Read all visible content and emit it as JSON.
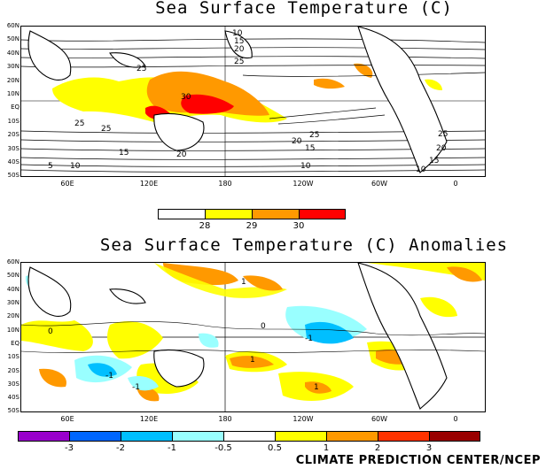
{
  "top_map": {
    "title": "Sea Surface Temperature (C)",
    "lat_labels": [
      "60N",
      "50N",
      "40N",
      "30N",
      "20N",
      "10N",
      "EQ",
      "10S",
      "20S",
      "30S",
      "40S",
      "50S"
    ],
    "lon_labels": [
      "60E",
      "120E",
      "180",
      "120W",
      "60W",
      "0"
    ],
    "contour_labels": [
      "10",
      "15",
      "20",
      "25",
      "30",
      "25",
      "25",
      "25",
      "20",
      "15",
      "10",
      "5",
      "10",
      "15",
      "20",
      "25",
      "25",
      "20",
      "15",
      "10"
    ],
    "legend": {
      "colors": [
        "#ffffff",
        "#ffff00",
        "#ff9900",
        "#ff0000"
      ],
      "labels": [
        "28",
        "29",
        "30"
      ]
    }
  },
  "bottom_map": {
    "title": "Sea Surface Temperature (C) Anomalies",
    "lat_labels": [
      "60N",
      "50N",
      "40N",
      "30N",
      "20N",
      "10N",
      "EQ",
      "10S",
      "20S",
      "30S",
      "40S",
      "50S"
    ],
    "lon_labels": [
      "60E",
      "120E",
      "180",
      "120W",
      "60W",
      "0"
    ],
    "contour_labels": [
      "1",
      "-1",
      "-1",
      "1",
      "1",
      "0",
      "0",
      "-1"
    ],
    "legend": {
      "colors": [
        "#9900cc",
        "#0066ff",
        "#00bfff",
        "#99ffff",
        "#ffffff",
        "#ffff00",
        "#ff9900",
        "#ff3300",
        "#990000"
      ],
      "labels": [
        "-3",
        "-2",
        "-1",
        "-0.5",
        "0.5",
        "1",
        "2",
        "3"
      ]
    }
  },
  "credit": "CLIMATE PREDICTION CENTER/NCEP"
}
